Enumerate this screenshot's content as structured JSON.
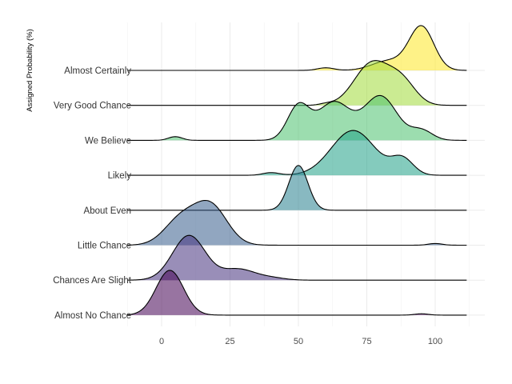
{
  "chart_data": {
    "type": "ridgeline",
    "title": "",
    "ylabel": "Assigned Probability (%)",
    "xlabel": "",
    "xlim": [
      -13,
      112
    ],
    "x_ticks": [
      0,
      25,
      50,
      75,
      100
    ],
    "x_tick_labels": [
      "0",
      "25",
      "50",
      "75",
      "100"
    ],
    "grid": true,
    "categories": [
      {
        "label": "Almost Certainly",
        "color": "#fde725",
        "peaks": [
          [
            60,
            3,
            0.06
          ],
          [
            83,
            6,
            0.22
          ],
          [
            95,
            4.5,
            1.0
          ]
        ]
      },
      {
        "label": "Very Good Chance",
        "color": "#a0da39",
        "peaks": [
          [
            60,
            2.5,
            0.03
          ],
          [
            77,
            6.5,
            1.0
          ],
          [
            88,
            5,
            0.5
          ]
        ]
      },
      {
        "label": "We Believe",
        "color": "#4ac16d",
        "peaks": [
          [
            5,
            2.5,
            0.06
          ],
          [
            50,
            4,
            0.55
          ],
          [
            63,
            6,
            0.62
          ],
          [
            80,
            6,
            0.72
          ],
          [
            95,
            4,
            0.16
          ]
        ]
      },
      {
        "label": "Likely",
        "color": "#1fa187",
        "peaks": [
          [
            40,
            3,
            0.05
          ],
          [
            70,
            8,
            0.85
          ],
          [
            88,
            4,
            0.3
          ]
        ]
      },
      {
        "label": "About Even",
        "color": "#277f8e",
        "peaks": [
          [
            50,
            3.5,
            1.0
          ]
        ]
      },
      {
        "label": "Little Chance",
        "color": "#365c8d",
        "peaks": [
          [
            7,
            6,
            0.45
          ],
          [
            18,
            6,
            0.68
          ],
          [
            100,
            2.5,
            0.03
          ]
        ]
      },
      {
        "label": "Chances Are Slight",
        "color": "#46327e",
        "peaks": [
          [
            10,
            6,
            0.98
          ],
          [
            28,
            6,
            0.24
          ],
          [
            40,
            5,
            0.05
          ]
        ]
      },
      {
        "label": "Almost No Chance",
        "color": "#440154",
        "peaks": [
          [
            3,
            5,
            1.0
          ],
          [
            95,
            2.5,
            0.03
          ]
        ]
      }
    ]
  }
}
